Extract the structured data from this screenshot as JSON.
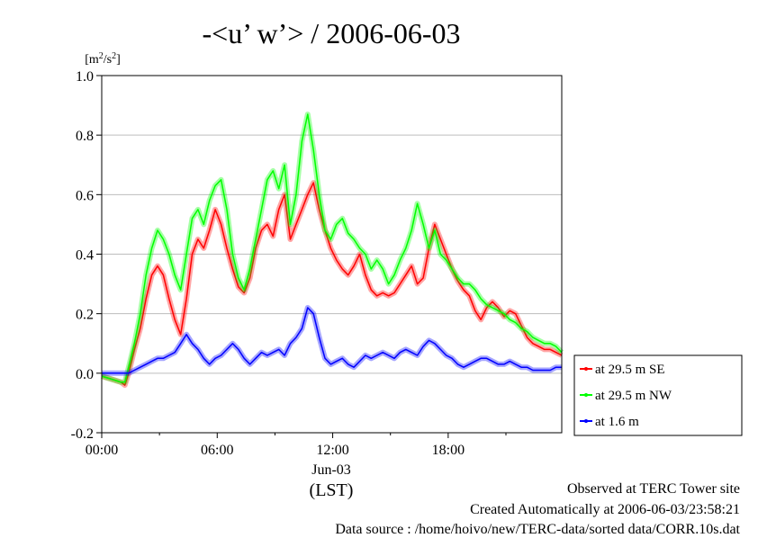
{
  "chart_data": {
    "type": "line",
    "title": "-<u’ w’> / 2006-06-03",
    "ylabel_unit": "[m2/s2]",
    "x_ticks": [
      {
        "hour": 0,
        "label": "00:00"
      },
      {
        "hour": 6,
        "label": "06:00"
      },
      {
        "hour": 12,
        "label": "12:00"
      },
      {
        "hour": 18,
        "label": "18:00"
      }
    ],
    "x_date_label": "Jun-03",
    "xlabel": "(LST)",
    "xlim_hours": [
      0,
      23.9
    ],
    "ylim": [
      -0.2,
      1.0
    ],
    "y_ticks": [
      "-0.2",
      "0.0",
      "0.2",
      "0.4",
      "0.6",
      "0.8",
      "1.0"
    ],
    "grid": true,
    "legend_position": "right",
    "series": [
      {
        "name": "at 29.5 m SE",
        "color": "#ff0000",
        "x": [
          0,
          0.5,
          1.0,
          1.2,
          1.4,
          1.7,
          2.0,
          2.3,
          2.6,
          2.9,
          3.2,
          3.5,
          3.8,
          4.1,
          4.4,
          4.7,
          5.0,
          5.3,
          5.6,
          5.9,
          6.2,
          6.5,
          6.8,
          7.1,
          7.4,
          7.7,
          8.0,
          8.3,
          8.6,
          8.9,
          9.2,
          9.5,
          9.8,
          10.1,
          10.4,
          10.7,
          11.0,
          11.3,
          11.6,
          11.9,
          12.2,
          12.5,
          12.8,
          13.1,
          13.4,
          13.7,
          14.0,
          14.3,
          14.6,
          14.9,
          15.2,
          15.5,
          15.8,
          16.1,
          16.4,
          16.7,
          17.0,
          17.3,
          17.6,
          17.9,
          18.2,
          18.5,
          18.8,
          19.1,
          19.4,
          19.7,
          20.0,
          20.3,
          20.6,
          20.9,
          21.2,
          21.5,
          21.8,
          22.1,
          22.4,
          22.7,
          23.0,
          23.3,
          23.6,
          23.9
        ],
        "values": [
          -0.01,
          -0.02,
          -0.03,
          -0.04,
          0.0,
          0.08,
          0.15,
          0.25,
          0.33,
          0.36,
          0.33,
          0.25,
          0.18,
          0.13,
          0.25,
          0.4,
          0.45,
          0.42,
          0.48,
          0.55,
          0.5,
          0.42,
          0.35,
          0.29,
          0.27,
          0.32,
          0.42,
          0.48,
          0.5,
          0.46,
          0.55,
          0.6,
          0.45,
          0.5,
          0.55,
          0.6,
          0.64,
          0.55,
          0.48,
          0.42,
          0.38,
          0.35,
          0.33,
          0.36,
          0.4,
          0.33,
          0.28,
          0.26,
          0.27,
          0.26,
          0.27,
          0.3,
          0.33,
          0.36,
          0.3,
          0.32,
          0.42,
          0.5,
          0.45,
          0.4,
          0.35,
          0.31,
          0.28,
          0.26,
          0.21,
          0.18,
          0.22,
          0.24,
          0.22,
          0.19,
          0.21,
          0.2,
          0.16,
          0.12,
          0.1,
          0.09,
          0.08,
          0.08,
          0.07,
          0.06
        ]
      },
      {
        "name": "at 29.5 m NW",
        "color": "#00ff00",
        "x": [
          0,
          0.5,
          1.0,
          1.2,
          1.4,
          1.7,
          2.0,
          2.3,
          2.6,
          2.9,
          3.2,
          3.5,
          3.8,
          4.1,
          4.4,
          4.7,
          5.0,
          5.3,
          5.6,
          5.9,
          6.2,
          6.5,
          6.8,
          7.1,
          7.4,
          7.7,
          8.0,
          8.3,
          8.6,
          8.9,
          9.2,
          9.5,
          9.8,
          10.1,
          10.4,
          10.7,
          11.0,
          11.3,
          11.6,
          11.9,
          12.2,
          12.5,
          12.8,
          13.1,
          13.4,
          13.7,
          14.0,
          14.3,
          14.6,
          14.9,
          15.2,
          15.5,
          15.8,
          16.1,
          16.4,
          16.7,
          17.0,
          17.3,
          17.6,
          17.9,
          18.2,
          18.5,
          18.8,
          19.1,
          19.4,
          19.7,
          20.0,
          20.3,
          20.6,
          20.9,
          21.2,
          21.5,
          21.8,
          22.1,
          22.4,
          22.7,
          23.0,
          23.3,
          23.6,
          23.9
        ],
        "values": [
          -0.01,
          -0.02,
          -0.03,
          -0.03,
          0.02,
          0.1,
          0.2,
          0.33,
          0.42,
          0.48,
          0.45,
          0.4,
          0.33,
          0.28,
          0.4,
          0.52,
          0.55,
          0.5,
          0.58,
          0.63,
          0.65,
          0.55,
          0.4,
          0.32,
          0.28,
          0.35,
          0.45,
          0.55,
          0.65,
          0.68,
          0.62,
          0.7,
          0.5,
          0.6,
          0.78,
          0.87,
          0.75,
          0.6,
          0.48,
          0.45,
          0.5,
          0.52,
          0.47,
          0.45,
          0.42,
          0.4,
          0.35,
          0.38,
          0.35,
          0.3,
          0.33,
          0.38,
          0.42,
          0.48,
          0.57,
          0.5,
          0.42,
          0.48,
          0.4,
          0.38,
          0.35,
          0.32,
          0.3,
          0.3,
          0.28,
          0.25,
          0.23,
          0.22,
          0.21,
          0.2,
          0.18,
          0.17,
          0.15,
          0.14,
          0.12,
          0.11,
          0.1,
          0.1,
          0.09,
          0.07
        ]
      },
      {
        "name": "at 1.6 m",
        "color": "#0000ff",
        "x": [
          0,
          0.5,
          1.0,
          1.2,
          1.4,
          1.7,
          2.0,
          2.3,
          2.6,
          2.9,
          3.2,
          3.5,
          3.8,
          4.1,
          4.4,
          4.7,
          5.0,
          5.3,
          5.6,
          5.9,
          6.2,
          6.5,
          6.8,
          7.1,
          7.4,
          7.7,
          8.0,
          8.3,
          8.6,
          8.9,
          9.2,
          9.5,
          9.8,
          10.1,
          10.4,
          10.7,
          11.0,
          11.3,
          11.6,
          11.9,
          12.2,
          12.5,
          12.8,
          13.1,
          13.4,
          13.7,
          14.0,
          14.3,
          14.6,
          14.9,
          15.2,
          15.5,
          15.8,
          16.1,
          16.4,
          16.7,
          17.0,
          17.3,
          17.6,
          17.9,
          18.2,
          18.5,
          18.8,
          19.1,
          19.4,
          19.7,
          20.0,
          20.3,
          20.6,
          20.9,
          21.2,
          21.5,
          21.8,
          22.1,
          22.4,
          22.7,
          23.0,
          23.3,
          23.6,
          23.9
        ],
        "values": [
          0.0,
          0.0,
          0.0,
          0.0,
          0.0,
          0.01,
          0.02,
          0.03,
          0.04,
          0.05,
          0.05,
          0.06,
          0.07,
          0.1,
          0.13,
          0.1,
          0.08,
          0.05,
          0.03,
          0.05,
          0.06,
          0.08,
          0.1,
          0.08,
          0.05,
          0.03,
          0.05,
          0.07,
          0.06,
          0.07,
          0.08,
          0.06,
          0.1,
          0.12,
          0.15,
          0.22,
          0.2,
          0.12,
          0.05,
          0.03,
          0.04,
          0.05,
          0.03,
          0.02,
          0.04,
          0.06,
          0.05,
          0.06,
          0.07,
          0.06,
          0.05,
          0.07,
          0.08,
          0.07,
          0.06,
          0.09,
          0.11,
          0.1,
          0.08,
          0.06,
          0.05,
          0.03,
          0.02,
          0.03,
          0.04,
          0.05,
          0.05,
          0.04,
          0.03,
          0.03,
          0.04,
          0.03,
          0.02,
          0.02,
          0.01,
          0.01,
          0.01,
          0.01,
          0.02,
          0.02
        ]
      }
    ]
  },
  "footer": {
    "line1": "Observed at TERC Tower site",
    "line2": "Created Automatically at 2006-06-03/23:58:21",
    "line3": "Data source : /home/hoivo/new/TERC-data/sorted  data/CORR.10s.dat"
  }
}
